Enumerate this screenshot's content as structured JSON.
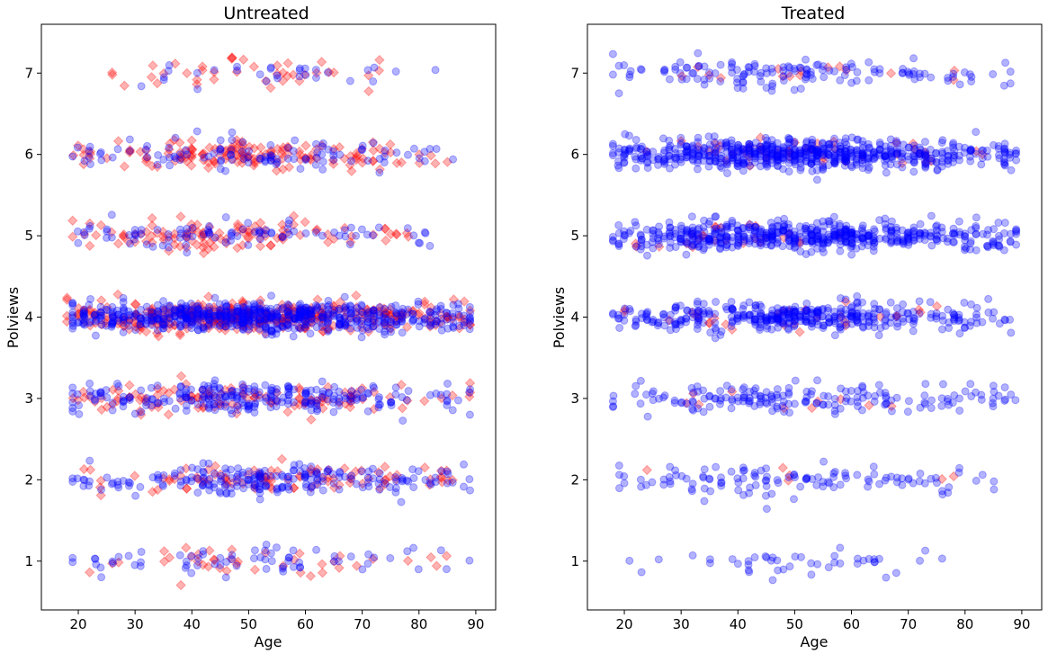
{
  "chart_data": [
    {
      "type": "scatter",
      "title": "Untreated",
      "xlabel": "Age",
      "ylabel": "Polviews",
      "xlim": [
        13.5,
        93.5
      ],
      "ylim": [
        0.4,
        7.6
      ],
      "xticks": [
        20,
        30,
        40,
        50,
        60,
        70,
        80,
        90
      ],
      "yticks": [
        1,
        2,
        3,
        4,
        5,
        6,
        7
      ],
      "grid": false,
      "series": [
        {
          "marker": "diamond",
          "color": "#ff0000",
          "alpha": 0.3,
          "bands": [
            {
              "y": 1,
              "x_range": [
                22,
                89
              ],
              "count": 40
            },
            {
              "y": 2,
              "x_range": [
                21,
                89
              ],
              "count": 95
            },
            {
              "y": 3,
              "x_range": [
                18,
                89
              ],
              "count": 120
            },
            {
              "y": 4,
              "x_range": [
                18,
                89
              ],
              "count": 380
            },
            {
              "y": 5,
              "x_range": [
                19,
                80
              ],
              "count": 110
            },
            {
              "y": 6,
              "x_range": [
                18,
                85
              ],
              "count": 150
            },
            {
              "y": 7,
              "x_range": [
                24,
                82
              ],
              "count": 40
            }
          ]
        },
        {
          "marker": "circle",
          "color": "#0000ff",
          "alpha": 0.3,
          "bands": [
            {
              "y": 1,
              "x_range": [
                19,
                89
              ],
              "count": 70
            },
            {
              "y": 2,
              "x_range": [
                19,
                89
              ],
              "count": 210
            },
            {
              "y": 3,
              "x_range": [
                19,
                89
              ],
              "count": 250
            },
            {
              "y": 4,
              "x_range": [
                19,
                89
              ],
              "count": 650
            },
            {
              "y": 5,
              "x_range": [
                19,
                89
              ],
              "count": 90
            },
            {
              "y": 6,
              "x_range": [
                19,
                89
              ],
              "count": 110
            },
            {
              "y": 7,
              "x_range": [
                21,
                86
              ],
              "count": 30
            }
          ]
        }
      ]
    },
    {
      "type": "scatter",
      "title": "Treated",
      "xlabel": "Age",
      "ylabel": "Polviews",
      "xlim": [
        13.5,
        93.5
      ],
      "ylim": [
        0.4,
        7.6
      ],
      "xticks": [
        20,
        30,
        40,
        50,
        60,
        70,
        80,
        90
      ],
      "yticks": [
        1,
        2,
        3,
        4,
        5,
        6,
        7
      ],
      "grid": false,
      "series": [
        {
          "marker": "diamond",
          "color": "#ff0000",
          "alpha": 0.3,
          "bands": [
            {
              "y": 2,
              "x_range": [
                24,
                78
              ],
              "count": 6
            },
            {
              "y": 3,
              "x_range": [
                22,
                82
              ],
              "count": 10
            },
            {
              "y": 4,
              "x_range": [
                20,
                78
              ],
              "count": 30
            },
            {
              "y": 5,
              "x_range": [
                22,
                60
              ],
              "count": 25
            },
            {
              "y": 6,
              "x_range": [
                20,
                89
              ],
              "count": 45
            },
            {
              "y": 7,
              "x_range": [
                26,
                82
              ],
              "count": 15
            }
          ]
        },
        {
          "marker": "circle",
          "color": "#0000ff",
          "alpha": 0.3,
          "bands": [
            {
              "y": 1,
              "x_range": [
                18,
                76
              ],
              "count": 45
            },
            {
              "y": 2,
              "x_range": [
                18,
                86
              ],
              "count": 120
            },
            {
              "y": 3,
              "x_range": [
                18,
                89
              ],
              "count": 180
            },
            {
              "y": 4,
              "x_range": [
                18,
                89
              ],
              "count": 400
            },
            {
              "y": 5,
              "x_range": [
                18,
                89
              ],
              "count": 550
            },
            {
              "y": 6,
              "x_range": [
                18,
                89
              ],
              "count": 650
            },
            {
              "y": 7,
              "x_range": [
                18,
                88
              ],
              "count": 140
            }
          ]
        }
      ]
    }
  ]
}
